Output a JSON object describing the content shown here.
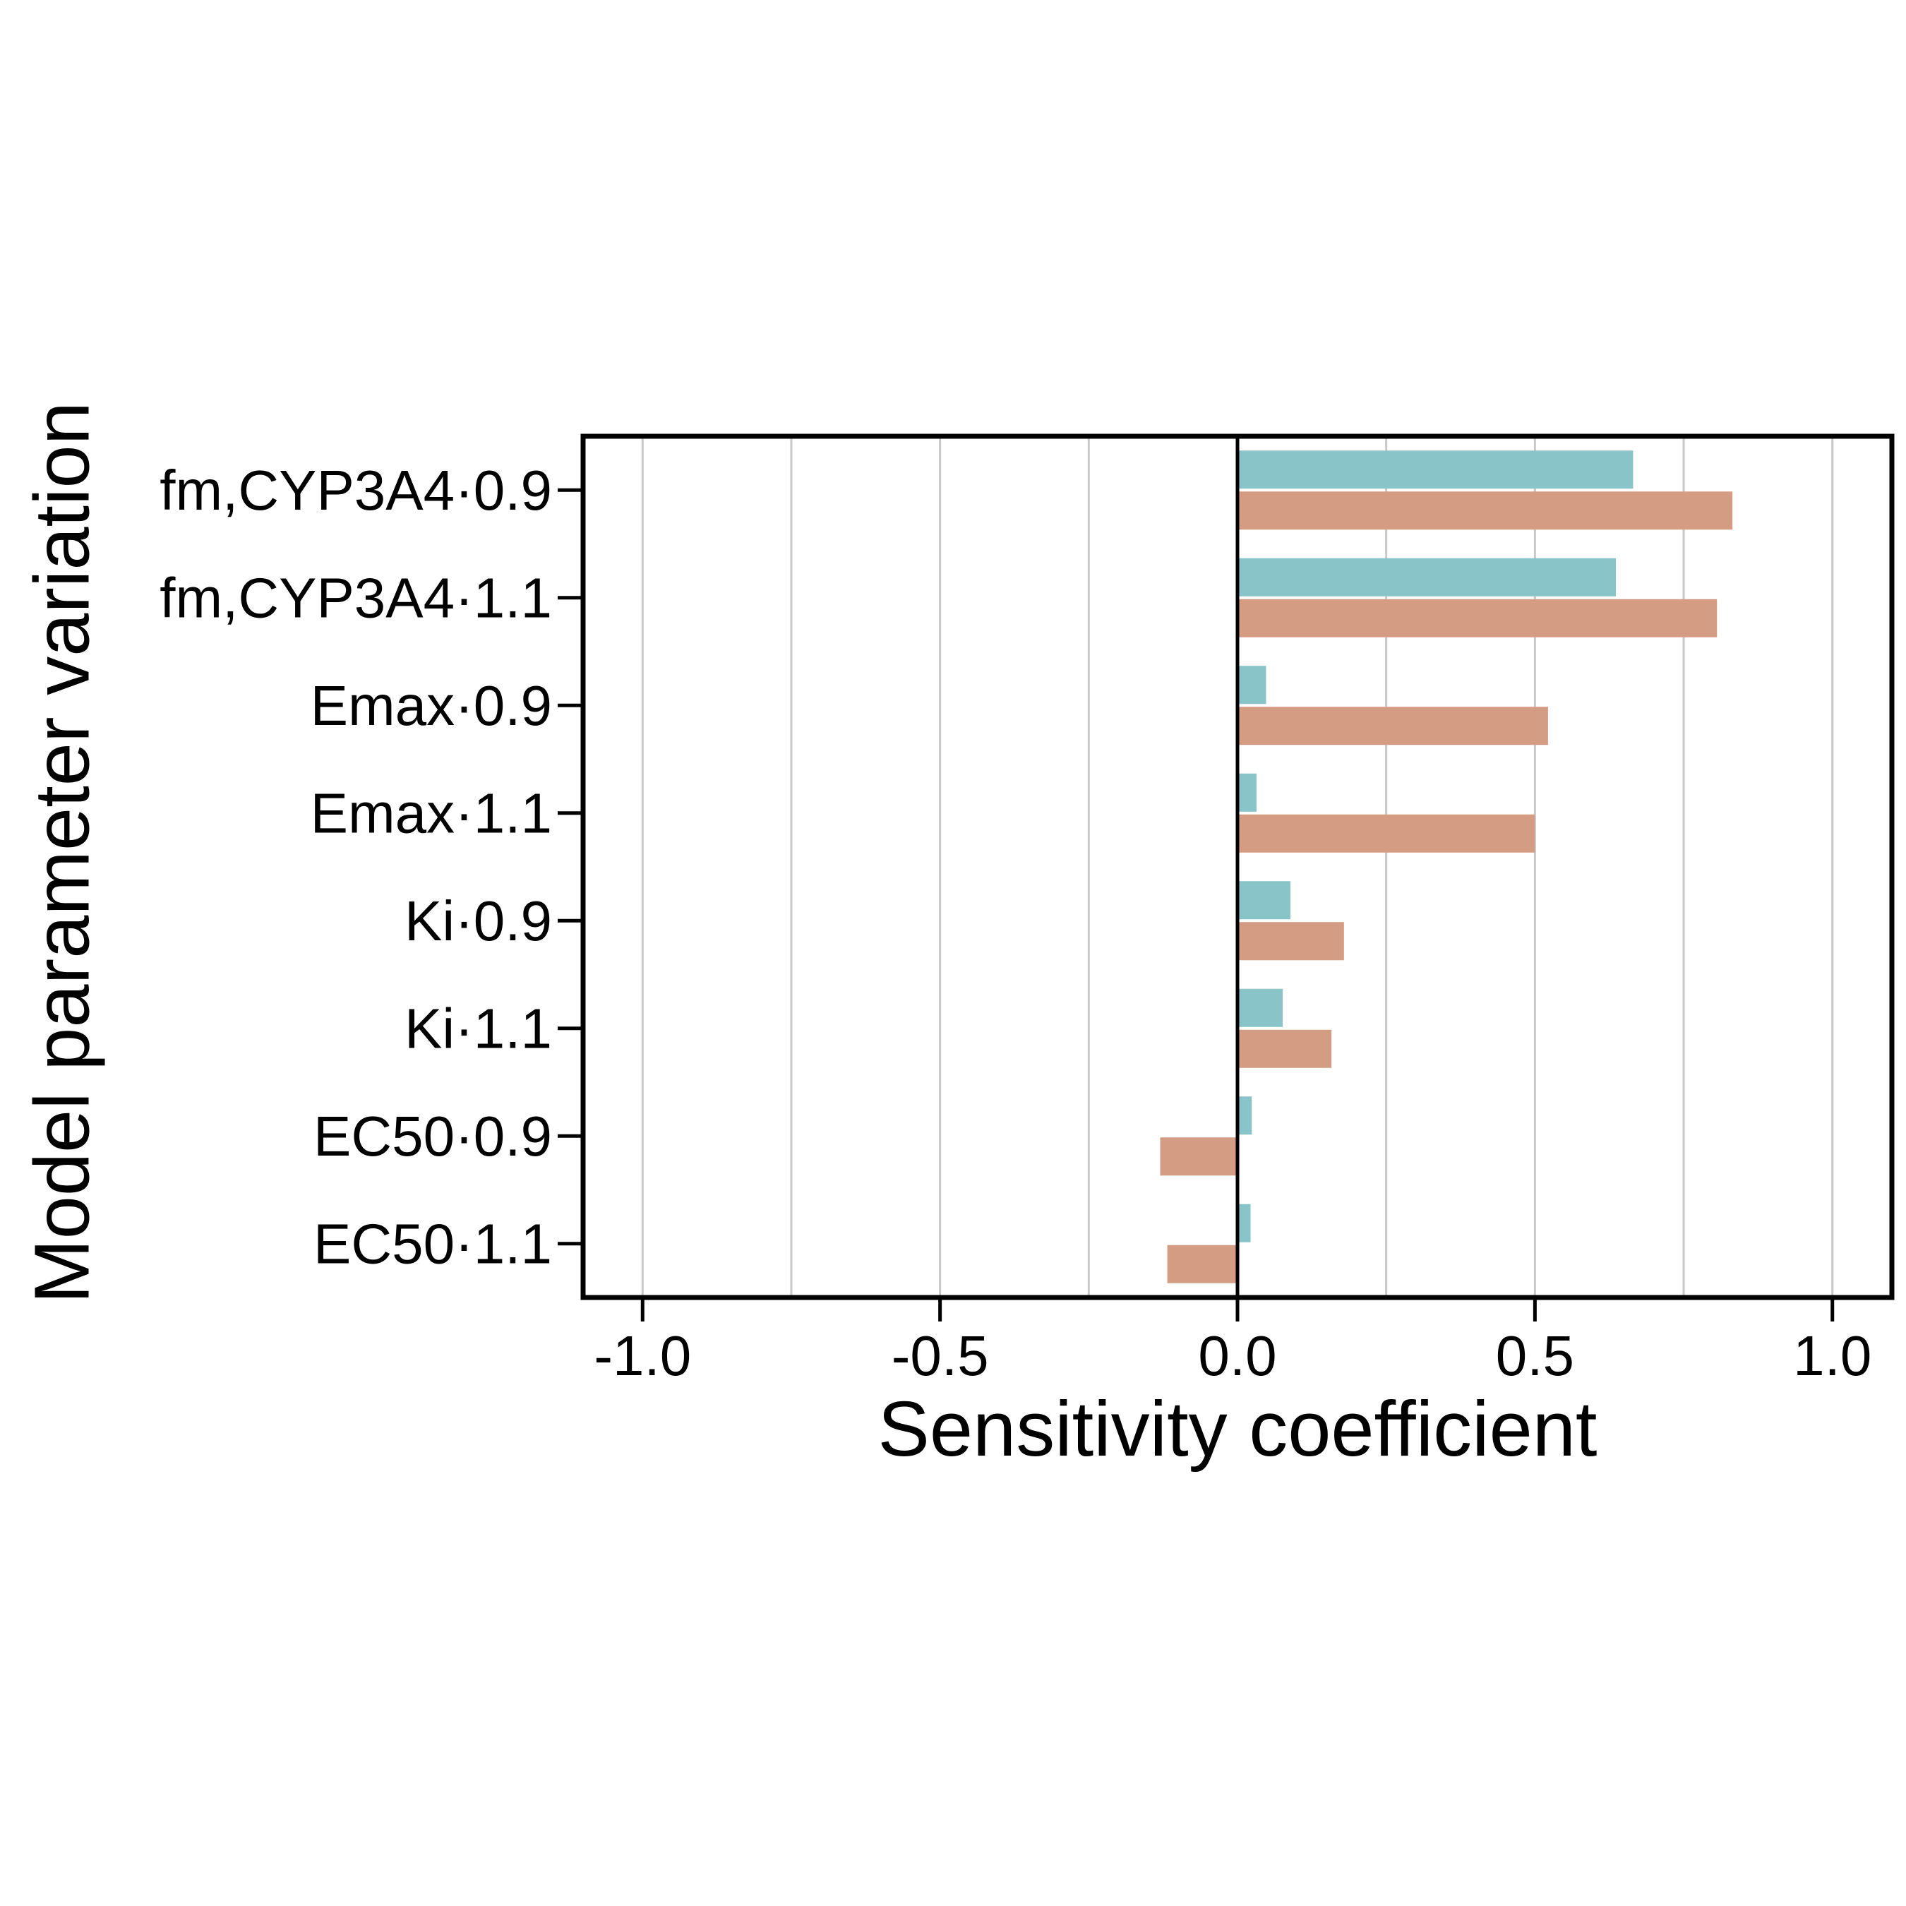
{
  "chart_data": {
    "type": "bar",
    "orientation": "horizontal",
    "categories": [
      "fm,CYP3A4·0.9",
      "fm,CYP3A4·1.1",
      "Emax·0.9",
      "Emax·1.1",
      "Ki·0.9",
      "Ki·1.1",
      "EC50·0.9",
      "EC50·1.1"
    ],
    "series": [
      {
        "color": "#89c4c8",
        "values": [
          0.665,
          0.636,
          0.048,
          0.032,
          0.089,
          0.076,
          0.024,
          0.022
        ]
      },
      {
        "color": "#d49d83",
        "values": [
          0.832,
          0.806,
          0.522,
          0.5,
          0.179,
          0.158,
          -0.13,
          -0.118
        ]
      }
    ],
    "xlabel": "Sensitivity coefficient",
    "ylabel": "Model parameter variation",
    "xlim": [
      -1.1,
      1.1
    ],
    "xticks": [
      -1.0,
      -0.5,
      0.0,
      0.5,
      1.0
    ],
    "xtick_labels": [
      "-1.0",
      "-0.5",
      "0.0",
      "0.5",
      "1.0"
    ],
    "grid": "vertical-every-0.25",
    "grid_color": "#c8c8c8",
    "zero_line": true,
    "legend": "none"
  }
}
